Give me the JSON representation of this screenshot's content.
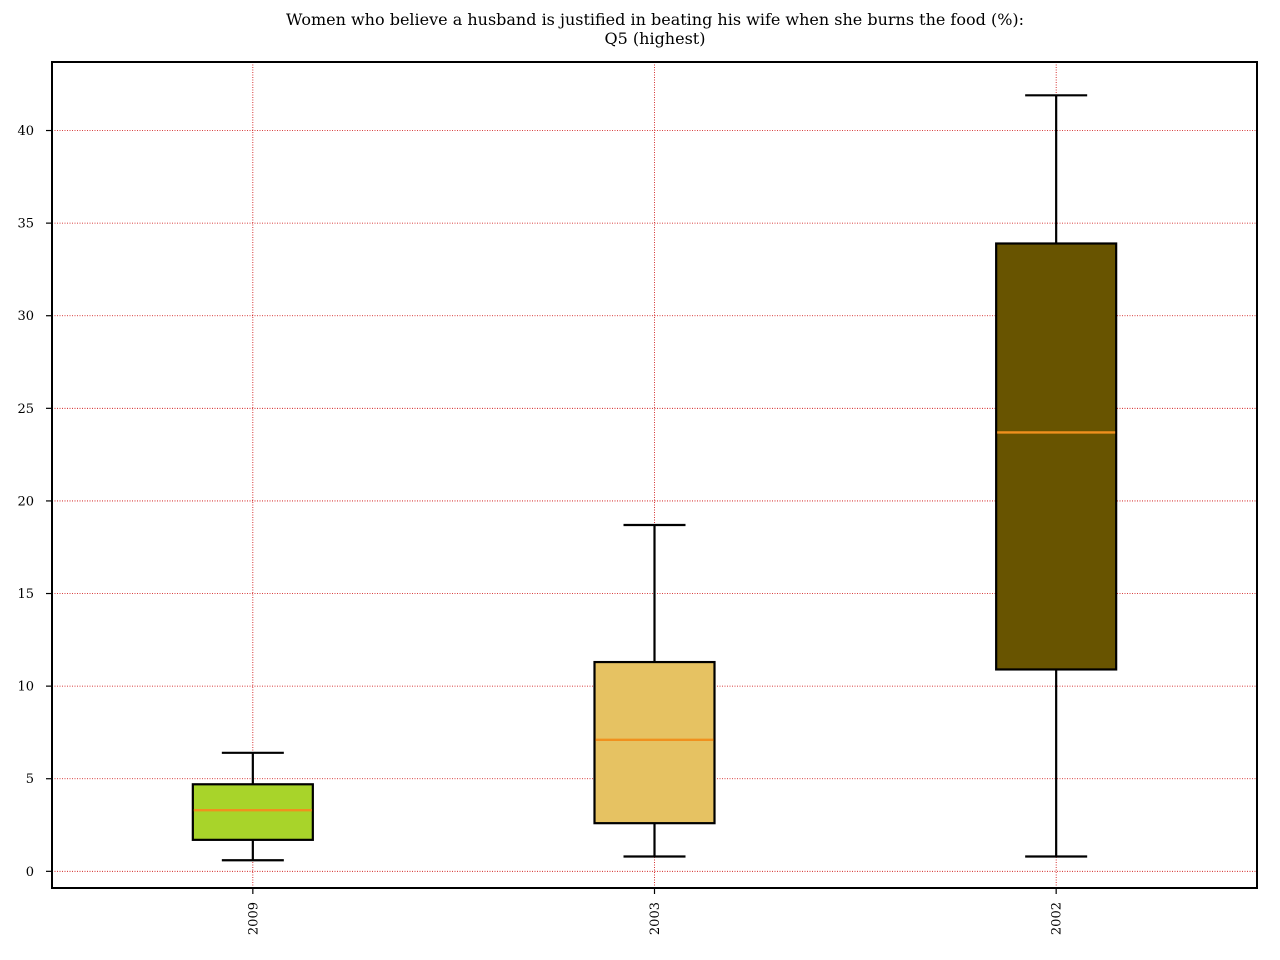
{
  "chart_data": {
    "type": "box",
    "title_line1": "Women who believe a husband is justified in beating his wife when she burns the food (%):",
    "title_line2": "Q5 (highest)",
    "xlabel": "",
    "ylabel": "",
    "categories": [
      "2009",
      "2003",
      "2002"
    ],
    "boxes": [
      {
        "category": "2009",
        "whisker_low": 0.6,
        "q1": 1.7,
        "median": 3.3,
        "q3": 4.7,
        "whisker_high": 6.4,
        "color": "#a8d42a"
      },
      {
        "category": "2003",
        "whisker_low": 0.8,
        "q1": 2.6,
        "median": 7.1,
        "q3": 11.3,
        "whisker_high": 18.7,
        "color": "#e6c262"
      },
      {
        "category": "2002",
        "whisker_low": 0.8,
        "q1": 10.9,
        "median": 23.7,
        "q3": 33.9,
        "whisker_high": 41.9,
        "color": "#685400"
      }
    ],
    "median_color": "#f0901e",
    "ylim": [
      -0.9,
      43.7
    ],
    "yticks": [
      0,
      5,
      10,
      15,
      20,
      25,
      30,
      35,
      40
    ],
    "grid": true,
    "grid_color": "#cc0000",
    "legend": "none"
  }
}
